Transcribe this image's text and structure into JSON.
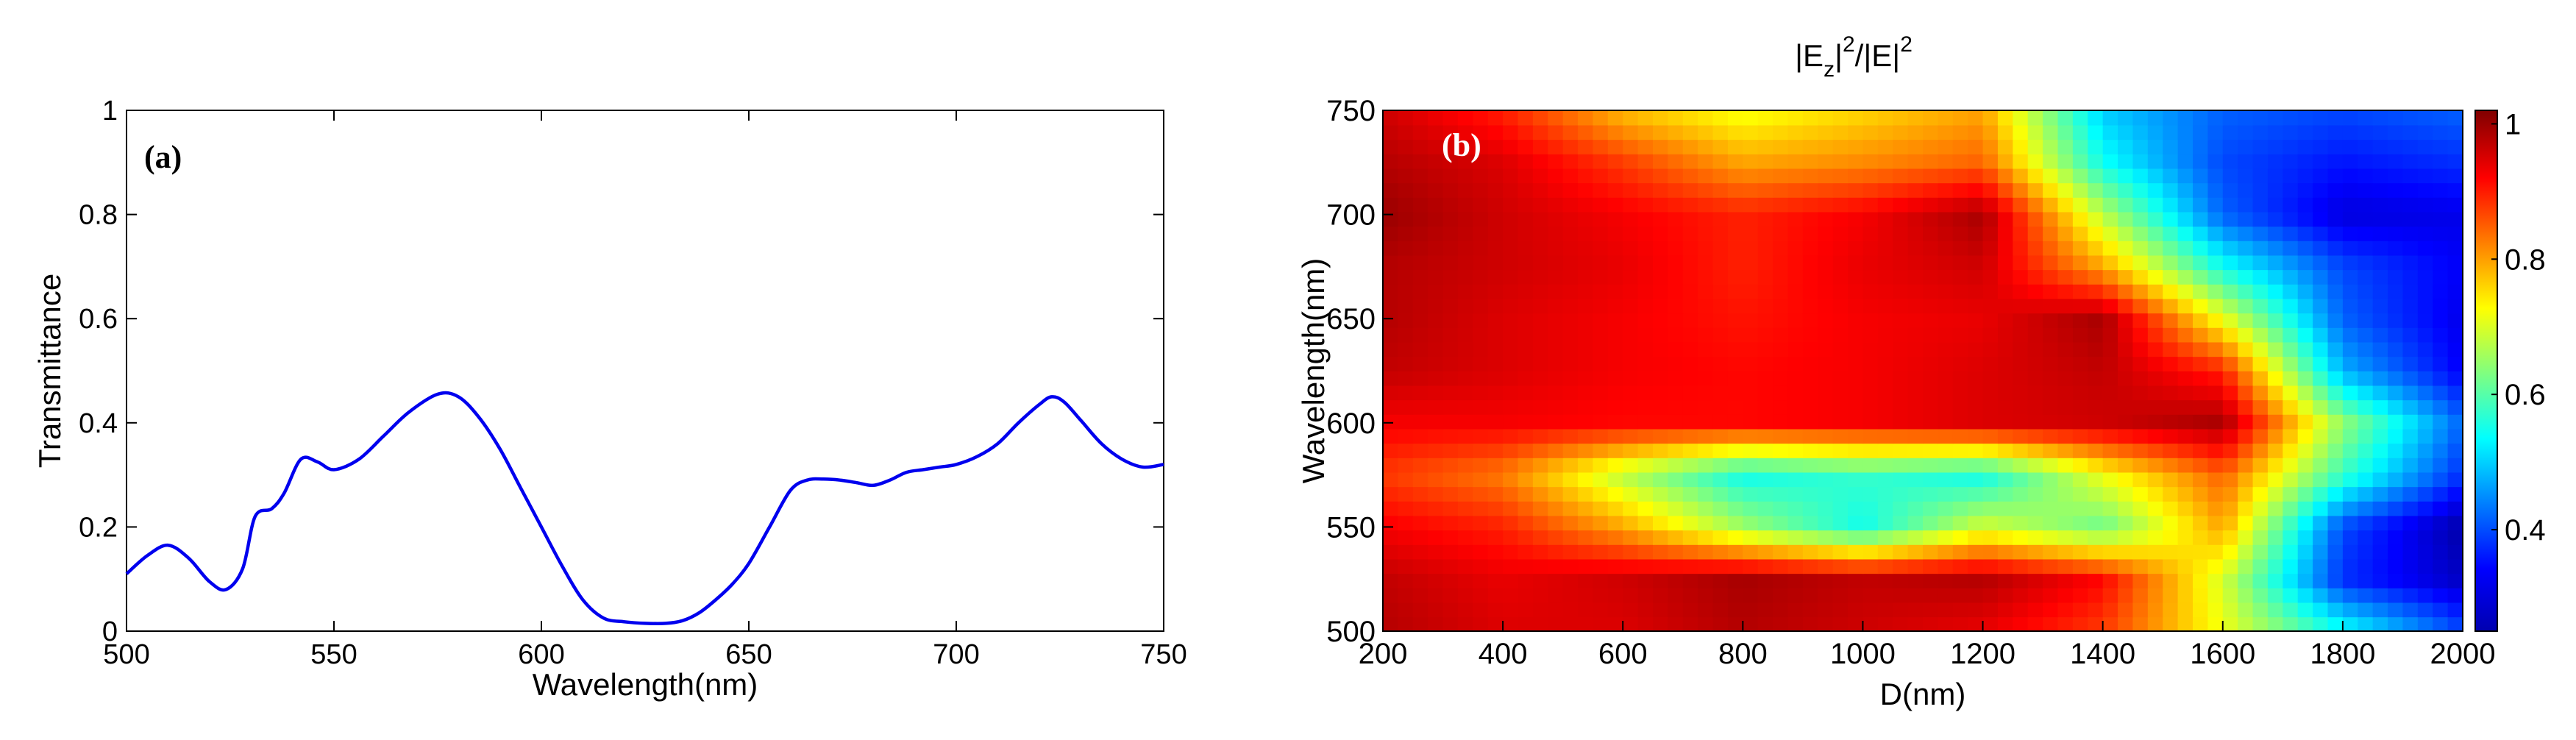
{
  "chart_data": [
    {
      "panel": "(a)",
      "type": "line",
      "title": "",
      "xlabel": "Wavelength(nm)",
      "ylabel": "Transmittance",
      "xlim": [
        500,
        750
      ],
      "ylim": [
        0,
        1
      ],
      "xticks": [
        "500",
        "550",
        "600",
        "650",
        "700",
        "750"
      ],
      "yticks": [
        "0",
        "0.2",
        "0.4",
        "0.6",
        "0.8",
        "1"
      ],
      "grid": false,
      "line_color": "#0000ee",
      "series": [
        {
          "name": "Transmittance",
          "x": [
            500,
            505,
            510,
            515,
            520,
            524,
            528,
            531,
            535,
            538,
            542,
            546,
            550,
            556,
            562,
            568,
            575,
            580,
            585,
            590,
            595,
            600,
            605,
            610,
            615,
            620,
            625,
            630,
            634,
            638,
            642,
            646,
            650,
            655,
            660,
            664,
            668,
            672,
            676,
            680,
            684,
            688,
            692,
            696,
            700,
            705,
            710,
            715,
            720,
            723,
            726,
            730,
            735,
            740,
            745,
            750
          ],
          "y": [
            0.11,
            0.145,
            0.165,
            0.14,
            0.095,
            0.08,
            0.12,
            0.22,
            0.235,
            0.265,
            0.33,
            0.325,
            0.31,
            0.33,
            0.375,
            0.42,
            0.455,
            0.45,
            0.41,
            0.35,
            0.275,
            0.2,
            0.125,
            0.06,
            0.025,
            0.018,
            0.015,
            0.015,
            0.02,
            0.035,
            0.06,
            0.09,
            0.13,
            0.2,
            0.27,
            0.29,
            0.292,
            0.29,
            0.285,
            0.28,
            0.29,
            0.305,
            0.31,
            0.315,
            0.32,
            0.335,
            0.36,
            0.4,
            0.435,
            0.45,
            0.44,
            0.405,
            0.36,
            0.33,
            0.315,
            0.32
          ]
        }
      ]
    },
    {
      "panel": "(b)",
      "type": "heatmap",
      "title_main": "|E",
      "title_sub": "z",
      "title_mid": "|",
      "title_sup1": "2",
      "title_tail": "/|E|",
      "title_sup2": "2",
      "xlabel": "D(nm)",
      "ylabel": "Wavelength(nm)",
      "xlim": [
        200,
        2000
      ],
      "ylim": [
        500,
        750
      ],
      "xticks": [
        "200",
        "400",
        "600",
        "800",
        "1000",
        "1200",
        "1400",
        "1600",
        "1800",
        "2000"
      ],
      "yticks": [
        "500",
        "550",
        "600",
        "650",
        "700",
        "750"
      ],
      "colorbar": {
        "range": [
          0.25,
          1.02
        ],
        "ticks": [
          "0.4",
          "0.6",
          "0.8",
          "1"
        ],
        "colormap": "jet"
      },
      "x": [
        200,
        400,
        600,
        800,
        1000,
        1200,
        1400,
        1600,
        1800,
        2000
      ],
      "y": [
        500,
        525,
        550,
        575,
        600,
        625,
        650,
        675,
        700,
        725,
        750
      ],
      "z": [
        [
          0.98,
          0.95,
          0.95,
          0.98,
          0.96,
          0.94,
          0.88,
          0.72,
          0.55,
          0.4
        ],
        [
          0.97,
          0.94,
          0.96,
          0.99,
          0.97,
          0.98,
          0.92,
          0.7,
          0.38,
          0.3
        ],
        [
          0.93,
          0.9,
          0.8,
          0.66,
          0.55,
          0.7,
          0.62,
          0.8,
          0.4,
          0.28
        ],
        [
          0.88,
          0.83,
          0.68,
          0.55,
          0.58,
          0.55,
          0.72,
          0.85,
          0.58,
          0.38
        ],
        [
          0.93,
          0.93,
          0.92,
          0.92,
          0.93,
          0.95,
          0.96,
          0.99,
          0.65,
          0.42
        ],
        [
          0.97,
          0.95,
          0.93,
          0.92,
          0.93,
          0.95,
          0.97,
          0.9,
          0.48,
          0.34
        ],
        [
          0.98,
          0.95,
          0.93,
          0.91,
          0.93,
          0.94,
          0.99,
          0.72,
          0.42,
          0.33
        ],
        [
          0.98,
          0.96,
          0.94,
          0.9,
          0.94,
          0.96,
          0.8,
          0.55,
          0.4,
          0.34
        ],
        [
          1.0,
          0.96,
          0.93,
          0.9,
          0.93,
          0.99,
          0.68,
          0.42,
          0.32,
          0.33
        ],
        [
          0.98,
          0.95,
          0.88,
          0.8,
          0.82,
          0.85,
          0.55,
          0.4,
          0.36,
          0.38
        ],
        [
          0.96,
          0.9,
          0.78,
          0.72,
          0.76,
          0.8,
          0.5,
          0.42,
          0.4,
          0.42
        ]
      ]
    }
  ]
}
